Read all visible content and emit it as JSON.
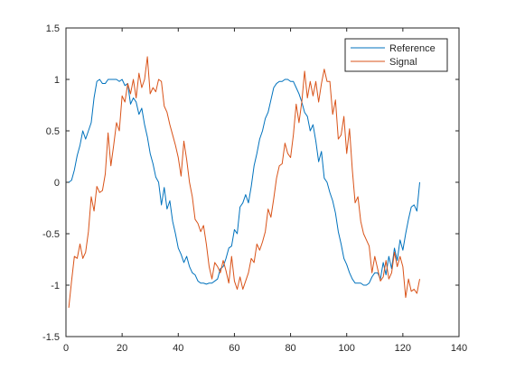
{
  "chart_data": {
    "type": "line",
    "title": "",
    "xlabel": "",
    "ylabel": "",
    "xlim": [
      0,
      140
    ],
    "ylim": [
      -1.5,
      1.5
    ],
    "xticks": [
      0,
      20,
      40,
      60,
      80,
      100,
      120,
      140
    ],
    "yticks": [
      -1.5,
      -1,
      -0.5,
      0,
      0.5,
      1,
      1.5
    ],
    "xtick_labels": [
      "0",
      "20",
      "40",
      "60",
      "80",
      "100",
      "120",
      "140"
    ],
    "ytick_labels": [
      "-1.5",
      "-1",
      "-0.5",
      "0",
      "0.5",
      "1",
      "1.5"
    ],
    "grid": false,
    "legend_position": "top-right",
    "series": [
      {
        "name": "Reference",
        "color": "#0072BD",
        "x": [
          1,
          2,
          3,
          4,
          5,
          6,
          7,
          8,
          9,
          10,
          11,
          12,
          13,
          14,
          15,
          16,
          17,
          18,
          19,
          20,
          21,
          22,
          23,
          24,
          25,
          26,
          27,
          28,
          29,
          30,
          31,
          32,
          33,
          34,
          35,
          36,
          37,
          38,
          39,
          40,
          41,
          42,
          43,
          44,
          45,
          46,
          47,
          48,
          49,
          50,
          51,
          52,
          53,
          54,
          55,
          56,
          57,
          58,
          59,
          60,
          61,
          62,
          63,
          64,
          65,
          66,
          67,
          68,
          69,
          70,
          71,
          72,
          73,
          74,
          75,
          76,
          77,
          78,
          79,
          80,
          81,
          82,
          83,
          84,
          85,
          86,
          87,
          88,
          89,
          90,
          91,
          92,
          93,
          94,
          95,
          96,
          97,
          98,
          99,
          100,
          101,
          102,
          103,
          104,
          105,
          106,
          107,
          108,
          109,
          110,
          111,
          112,
          113,
          114,
          115,
          116,
          117,
          118,
          119,
          120,
          121,
          122,
          123,
          124,
          125,
          126
        ],
        "values": [
          0,
          0.02,
          0.12,
          0.26,
          0.36,
          0.5,
          0.42,
          0.5,
          0.58,
          0.82,
          0.98,
          1.0,
          0.96,
          0.96,
          1.0,
          1.0,
          1.0,
          1.0,
          0.98,
          1.0,
          0.94,
          0.96,
          0.76,
          0.82,
          0.78,
          0.66,
          0.72,
          0.56,
          0.44,
          0.28,
          0.18,
          0.05,
          0.0,
          -0.22,
          -0.05,
          -0.26,
          -0.18,
          -0.38,
          -0.5,
          -0.64,
          -0.7,
          -0.78,
          -0.72,
          -0.82,
          -0.88,
          -0.9,
          -0.96,
          -0.98,
          -0.98,
          -0.99,
          -0.98,
          -0.98,
          -0.96,
          -0.94,
          -0.84,
          -0.82,
          -0.74,
          -0.64,
          -0.62,
          -0.46,
          -0.5,
          -0.24,
          -0.2,
          -0.12,
          -0.2,
          -0.04,
          0.16,
          0.28,
          0.42,
          0.5,
          0.62,
          0.68,
          0.8,
          0.92,
          0.96,
          0.98,
          0.98,
          1.0,
          1.0,
          0.98,
          0.98,
          0.92,
          0.86,
          0.78,
          0.68,
          0.64,
          0.5,
          0.56,
          0.4,
          0.2,
          0.3,
          0.04,
          0.0,
          -0.1,
          -0.18,
          -0.3,
          -0.48,
          -0.6,
          -0.74,
          -0.8,
          -0.88,
          -0.94,
          -0.98,
          -0.98,
          -0.98,
          -1.0,
          -1.0,
          -0.98,
          -0.92,
          -0.88,
          -0.88,
          -0.94,
          -0.78,
          -0.9,
          -0.72,
          -0.84,
          -0.64,
          -0.76,
          -0.56,
          -0.66,
          -0.5,
          -0.36,
          -0.24,
          -0.22,
          -0.28,
          0.0
        ]
      },
      {
        "name": "Signal",
        "color": "#D95319",
        "x": [
          1,
          2,
          3,
          4,
          5,
          6,
          7,
          8,
          9,
          10,
          11,
          12,
          13,
          14,
          15,
          16,
          17,
          18,
          19,
          20,
          21,
          22,
          23,
          24,
          25,
          26,
          27,
          28,
          29,
          30,
          31,
          32,
          33,
          34,
          35,
          36,
          37,
          38,
          39,
          40,
          41,
          42,
          43,
          44,
          45,
          46,
          47,
          48,
          49,
          50,
          51,
          52,
          53,
          54,
          55,
          56,
          57,
          58,
          59,
          60,
          61,
          62,
          63,
          64,
          65,
          66,
          67,
          68,
          69,
          70,
          71,
          72,
          73,
          74,
          75,
          76,
          77,
          78,
          79,
          80,
          81,
          82,
          83,
          84,
          85,
          86,
          87,
          88,
          89,
          90,
          91,
          92,
          93,
          94,
          95,
          96,
          97,
          98,
          99,
          100,
          101,
          102,
          103,
          104,
          105,
          106,
          107,
          108,
          109,
          110,
          111,
          112,
          113,
          114,
          115,
          116,
          117,
          118,
          119,
          120,
          121,
          122,
          123,
          124,
          125,
          126
        ],
        "values": [
          -1.22,
          -0.96,
          -0.72,
          -0.74,
          -0.6,
          -0.74,
          -0.68,
          -0.48,
          -0.14,
          -0.28,
          -0.04,
          -0.1,
          -0.08,
          0.08,
          0.48,
          0.16,
          0.36,
          0.58,
          0.5,
          0.84,
          0.78,
          0.96,
          0.86,
          1.0,
          0.82,
          1.06,
          0.92,
          1.0,
          1.22,
          0.86,
          0.92,
          0.88,
          1.0,
          0.98,
          0.74,
          0.68,
          0.56,
          0.46,
          0.36,
          0.24,
          0.06,
          0.4,
          0.22,
          0.0,
          -0.14,
          -0.36,
          -0.4,
          -0.48,
          -0.42,
          -0.6,
          -0.82,
          -0.94,
          -0.78,
          -0.82,
          -0.88,
          -0.76,
          -0.86,
          -0.98,
          -0.72,
          -0.96,
          -1.04,
          -0.92,
          -1.04,
          -0.96,
          -0.88,
          -0.74,
          -0.78,
          -0.6,
          -0.66,
          -0.58,
          -0.48,
          -0.26,
          -0.34,
          -0.16,
          0.04,
          0.16,
          0.18,
          0.38,
          0.28,
          0.24,
          0.46,
          0.76,
          0.58,
          0.78,
          1.08,
          0.82,
          0.98,
          0.84,
          0.98,
          0.78,
          0.96,
          1.1,
          0.98,
          0.98,
          0.66,
          0.8,
          0.42,
          0.46,
          0.64,
          0.28,
          0.52,
          0.12,
          -0.2,
          -0.14,
          -0.38,
          -0.5,
          -0.56,
          -0.62,
          -0.88,
          -0.72,
          -0.84,
          -0.96,
          -0.92,
          -0.76,
          -0.94,
          -0.88,
          -0.68,
          -0.82,
          -0.72,
          -0.82,
          -1.12,
          -0.94,
          -1.06,
          -1.04,
          -1.08,
          -0.94
        ]
      }
    ]
  }
}
